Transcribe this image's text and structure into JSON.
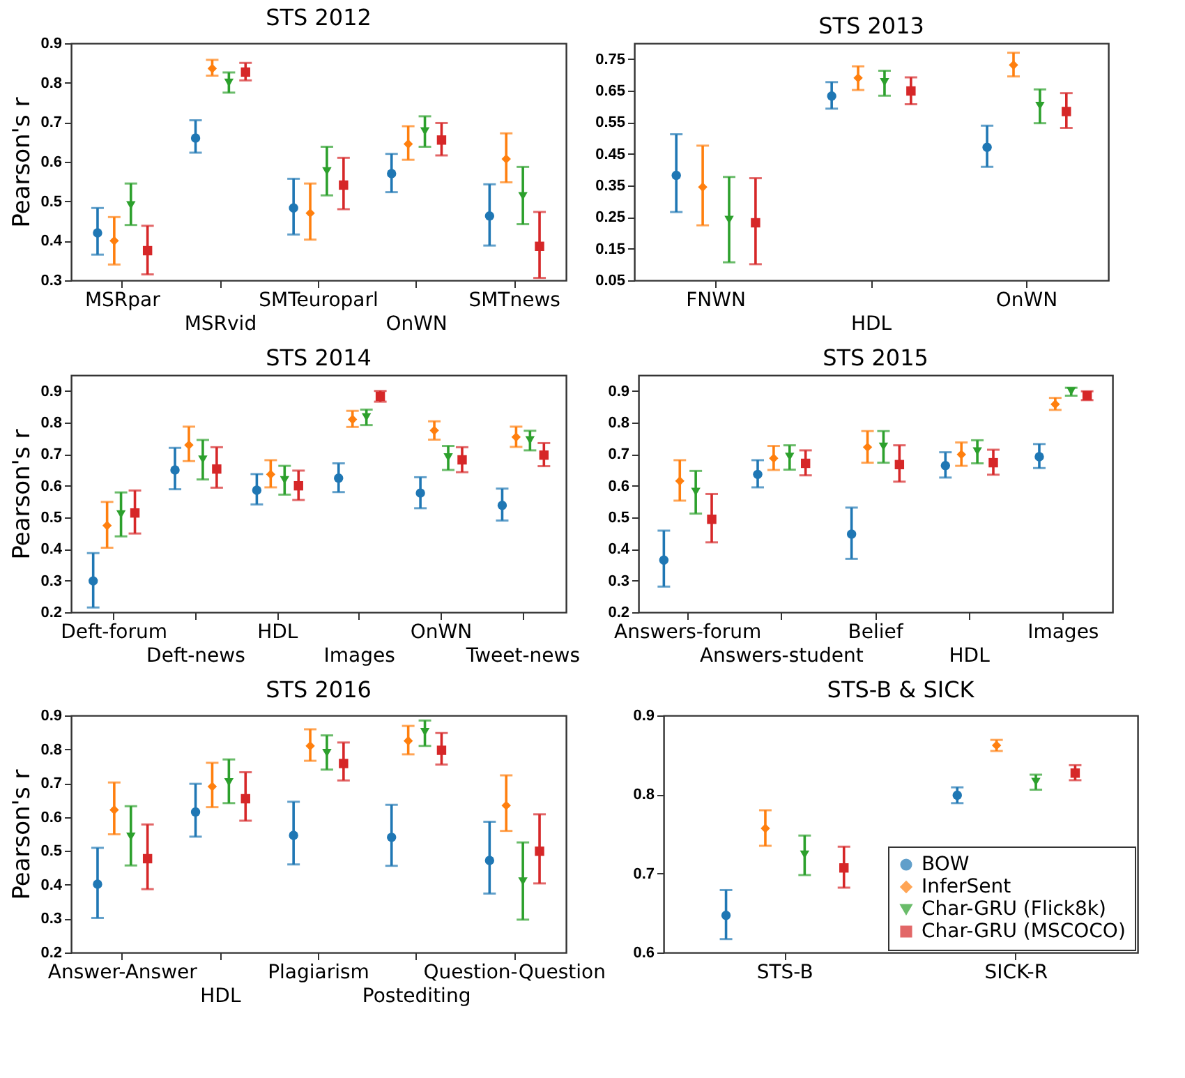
{
  "chart_data": [
    {
      "type": "scatter",
      "title": "STS 2012",
      "ylabel": "Pearson's r",
      "categories": [
        "MSRpar",
        "MSRvid",
        "SMTeuroparl",
        "OnWN",
        "SMTnews"
      ],
      "ylim": [
        0.3,
        0.9
      ],
      "yticks": [
        0.3,
        0.4,
        0.5,
        0.6,
        0.7,
        0.8,
        0.9
      ],
      "series": [
        {
          "color": "#1f77b4",
          "marker": "circle",
          "values": [
            0.42,
            0.66,
            0.483,
            0.57,
            0.463
          ],
          "errors": [
            [
              0.365,
              0.483
            ],
            [
              0.623,
              0.705
            ],
            [
              0.416,
              0.557
            ],
            [
              0.523,
              0.62
            ],
            [
              0.388,
              0.543
            ]
          ]
        },
        {
          "color": "#ff7f0e",
          "marker": "diamond",
          "values": [
            0.4,
            0.836,
            0.47,
            0.645,
            0.607
          ],
          "errors": [
            [
              0.34,
              0.46
            ],
            [
              0.818,
              0.858
            ],
            [
              0.403,
              0.545
            ],
            [
              0.605,
              0.69
            ],
            [
              0.548,
              0.672
            ]
          ]
        },
        {
          "color": "#2ca02c",
          "marker": "triangle",
          "values": [
            0.49,
            0.8,
            0.576,
            0.677,
            0.513
          ],
          "errors": [
            [
              0.44,
              0.545
            ],
            [
              0.775,
              0.826
            ],
            [
              0.515,
              0.638
            ],
            [
              0.638,
              0.715
            ],
            [
              0.442,
              0.587
            ]
          ]
        },
        {
          "color": "#d62728",
          "marker": "square",
          "values": [
            0.375,
            0.827,
            0.541,
            0.655,
            0.386
          ],
          "errors": [
            [
              0.315,
              0.438
            ],
            [
              0.806,
              0.85
            ],
            [
              0.48,
              0.61
            ],
            [
              0.616,
              0.698
            ],
            [
              0.306,
              0.473
            ]
          ]
        }
      ]
    },
    {
      "type": "scatter",
      "title": "STS 2013",
      "categories": [
        "FNWN",
        "HDL",
        "OnWN"
      ],
      "ylim": [
        0.05,
        0.8
      ],
      "yticks": [
        0.05,
        0.15,
        0.25,
        0.35,
        0.45,
        0.55,
        0.65,
        0.75
      ],
      "series": [
        {
          "color": "#1f77b4",
          "marker": "circle",
          "values": [
            0.382,
            0.633,
            0.471
          ],
          "errors": [
            [
              0.266,
              0.512
            ],
            [
              0.593,
              0.677
            ],
            [
              0.409,
              0.539
            ]
          ]
        },
        {
          "color": "#ff7f0e",
          "marker": "diamond",
          "values": [
            0.345,
            0.69,
            0.731
          ],
          "errors": [
            [
              0.224,
              0.476
            ],
            [
              0.652,
              0.727
            ],
            [
              0.695,
              0.77
            ]
          ]
        },
        {
          "color": "#2ca02c",
          "marker": "triangle",
          "values": [
            0.241,
            0.677,
            0.602
          ],
          "errors": [
            [
              0.107,
              0.377
            ],
            [
              0.634,
              0.713
            ],
            [
              0.547,
              0.654
            ]
          ]
        },
        {
          "color": "#d62728",
          "marker": "square",
          "values": [
            0.232,
            0.649,
            0.584
          ],
          "errors": [
            [
              0.101,
              0.373
            ],
            [
              0.607,
              0.692
            ],
            [
              0.532,
              0.642
            ]
          ]
        }
      ]
    },
    {
      "type": "scatter",
      "title": "STS 2014",
      "ylabel": "Pearson's r",
      "categories": [
        "Deft-forum",
        "Deft-news",
        "HDL",
        "Images",
        "OnWN",
        "Tweet-news"
      ],
      "ylim": [
        0.2,
        0.95
      ],
      "yticks": [
        0.2,
        0.3,
        0.4,
        0.5,
        0.6,
        0.7,
        0.8,
        0.9
      ],
      "series": [
        {
          "color": "#1f77b4",
          "marker": "circle",
          "values": [
            0.299,
            0.65,
            0.586,
            0.624,
            0.577,
            0.538
          ],
          "errors": [
            [
              0.215,
              0.387
            ],
            [
              0.589,
              0.72
            ],
            [
              0.541,
              0.637
            ],
            [
              0.58,
              0.671
            ],
            [
              0.529,
              0.627
            ],
            [
              0.49,
              0.591
            ]
          ]
        },
        {
          "color": "#ff7f0e",
          "marker": "diamond",
          "values": [
            0.474,
            0.729,
            0.636,
            0.81,
            0.775,
            0.754
          ],
          "errors": [
            [
              0.404,
              0.549
            ],
            [
              0.678,
              0.787
            ],
            [
              0.595,
              0.681
            ],
            [
              0.786,
              0.837
            ],
            [
              0.746,
              0.804
            ],
            [
              0.723,
              0.787
            ]
          ]
        },
        {
          "color": "#2ca02c",
          "marker": "triangle",
          "values": [
            0.51,
            0.683,
            0.618,
            0.817,
            0.69,
            0.744
          ],
          "errors": [
            [
              0.44,
              0.579
            ],
            [
              0.62,
              0.745
            ],
            [
              0.572,
              0.663
            ],
            [
              0.792,
              0.841
            ],
            [
              0.65,
              0.726
            ],
            [
              0.712,
              0.774
            ]
          ]
        },
        {
          "color": "#d62728",
          "marker": "square",
          "values": [
            0.514,
            0.653,
            0.6,
            0.883,
            0.682,
            0.697
          ],
          "errors": [
            [
              0.449,
              0.585
            ],
            [
              0.594,
              0.722
            ],
            [
              0.555,
              0.648
            ],
            [
              0.866,
              0.9
            ],
            [
              0.643,
              0.722
            ],
            [
              0.662,
              0.735
            ]
          ]
        }
      ]
    },
    {
      "type": "scatter",
      "title": "STS 2015",
      "categories": [
        "Answers-forum",
        "Answers-student",
        "Belief",
        "HDL",
        "Images"
      ],
      "ylim": [
        0.2,
        0.95
      ],
      "yticks": [
        0.2,
        0.3,
        0.4,
        0.5,
        0.6,
        0.7,
        0.8,
        0.9
      ],
      "series": [
        {
          "color": "#1f77b4",
          "marker": "circle",
          "values": [
            0.365,
            0.636,
            0.447,
            0.664,
            0.692
          ],
          "errors": [
            [
              0.281,
              0.458
            ],
            [
              0.595,
              0.681
            ],
            [
              0.369,
              0.531
            ],
            [
              0.626,
              0.706
            ],
            [
              0.656,
              0.732
            ]
          ]
        },
        {
          "color": "#ff7f0e",
          "marker": "diamond",
          "values": [
            0.615,
            0.687,
            0.722,
            0.699,
            0.858
          ],
          "errors": [
            [
              0.553,
              0.681
            ],
            [
              0.65,
              0.726
            ],
            [
              0.673,
              0.773
            ],
            [
              0.663,
              0.737
            ],
            [
              0.84,
              0.878
            ]
          ]
        },
        {
          "color": "#2ca02c",
          "marker": "triangle",
          "values": [
            0.581,
            0.692,
            0.724,
            0.709,
            0.899
          ],
          "errors": [
            [
              0.512,
              0.647
            ],
            [
              0.651,
              0.728
            ],
            [
              0.673,
              0.773
            ],
            [
              0.671,
              0.744
            ],
            [
              0.885,
              0.91
            ]
          ]
        },
        {
          "color": "#d62728",
          "marker": "square",
          "values": [
            0.494,
            0.671,
            0.667,
            0.673,
            0.885
          ],
          "errors": [
            [
              0.421,
              0.574
            ],
            [
              0.633,
              0.712
            ],
            [
              0.613,
              0.728
            ],
            [
              0.635,
              0.714
            ],
            [
              0.871,
              0.899
            ]
          ]
        }
      ]
    },
    {
      "type": "scatter",
      "title": "STS 2016",
      "ylabel": "Pearson's r",
      "categories": [
        "Answer-Answer",
        "HDL",
        "Plagiarism",
        "Postediting",
        "Question-Question"
      ],
      "ylim": [
        0.2,
        0.9
      ],
      "yticks": [
        0.2,
        0.3,
        0.4,
        0.5,
        0.6,
        0.7,
        0.8,
        0.9
      ],
      "series": [
        {
          "color": "#1f77b4",
          "marker": "circle",
          "values": [
            0.402,
            0.615,
            0.546,
            0.54,
            0.472
          ],
          "errors": [
            [
              0.302,
              0.509
            ],
            [
              0.542,
              0.698
            ],
            [
              0.46,
              0.645
            ],
            [
              0.456,
              0.636
            ],
            [
              0.374,
              0.586
            ]
          ]
        },
        {
          "color": "#ff7f0e",
          "marker": "diamond",
          "values": [
            0.621,
            0.69,
            0.81,
            0.825,
            0.634
          ],
          "errors": [
            [
              0.549,
              0.702
            ],
            [
              0.629,
              0.76
            ],
            [
              0.766,
              0.859
            ],
            [
              0.785,
              0.869
            ],
            [
              0.559,
              0.723
            ]
          ]
        },
        {
          "color": "#2ca02c",
          "marker": "triangle",
          "values": [
            0.542,
            0.703,
            0.789,
            0.851,
            0.41
          ],
          "errors": [
            [
              0.457,
              0.632
            ],
            [
              0.641,
              0.77
            ],
            [
              0.74,
              0.841
            ],
            [
              0.81,
              0.885
            ],
            [
              0.297,
              0.525
            ]
          ]
        },
        {
          "color": "#d62728",
          "marker": "square",
          "values": [
            0.477,
            0.654,
            0.758,
            0.797,
            0.499
          ],
          "errors": [
            [
              0.387,
              0.578
            ],
            [
              0.589,
              0.732
            ],
            [
              0.708,
              0.82
            ],
            [
              0.755,
              0.848
            ],
            [
              0.404,
              0.608
            ]
          ]
        }
      ]
    },
    {
      "type": "scatter",
      "title": "STS-B & SICK",
      "categories": [
        "STS-B",
        "SICK-R"
      ],
      "ylim": [
        0.6,
        0.9
      ],
      "yticks": [
        0.6,
        0.7,
        0.8,
        0.9
      ],
      "legend": "bottom right",
      "series": [
        {
          "name": "BOW",
          "color": "#1f77b4",
          "marker": "circle",
          "values": [
            0.647,
            0.799
          ],
          "errors": [
            [
              0.617,
              0.679
            ],
            [
              0.789,
              0.809
            ]
          ]
        },
        {
          "name": "InferSent",
          "color": "#ff7f0e",
          "marker": "diamond",
          "values": [
            0.757,
            0.862
          ],
          "errors": [
            [
              0.735,
              0.78
            ],
            [
              0.855,
              0.869
            ]
          ]
        },
        {
          "name": "Char-GRU (Flick8k)",
          "color": "#2ca02c",
          "marker": "triangle",
          "values": [
            0.724,
            0.816
          ],
          "errors": [
            [
              0.698,
              0.748
            ],
            [
              0.806,
              0.825
            ]
          ]
        },
        {
          "name": "Char-GRU (MSCOCO)",
          "color": "#d62728",
          "marker": "square",
          "values": [
            0.707,
            0.827
          ],
          "errors": [
            [
              0.682,
              0.734
            ],
            [
              0.818,
              0.837
            ]
          ]
        }
      ]
    }
  ]
}
